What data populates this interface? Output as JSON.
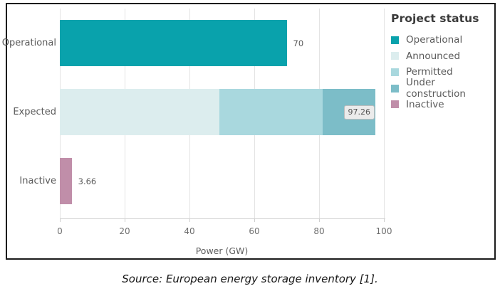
{
  "chart_data": {
    "type": "bar",
    "orientation": "horizontal",
    "stacked": true,
    "title": "",
    "xlabel": "Power (GW)",
    "ylabel": "",
    "xlim": [
      0,
      100
    ],
    "x_ticks": [
      0,
      20,
      40,
      60,
      80,
      100
    ],
    "grid": true,
    "categories": [
      "Operational",
      "Expected",
      "Inactive"
    ],
    "rows": [
      {
        "category": "Operational",
        "segments": [
          {
            "series": "Operational",
            "value": 70
          }
        ],
        "total": 70,
        "data_label": "70",
        "data_label_style": "plain"
      },
      {
        "category": "Expected",
        "segments": [
          {
            "series": "Announced",
            "value": 49.3
          },
          {
            "series": "Permitted",
            "value": 31.8
          },
          {
            "series": "Under construction",
            "value": 16.16
          }
        ],
        "total": 97.26,
        "data_label": "97.26",
        "data_label_style": "boxed"
      },
      {
        "category": "Inactive",
        "segments": [
          {
            "series": "Inactive",
            "value": 3.66
          }
        ],
        "total": 3.66,
        "data_label": "3.66",
        "data_label_style": "plain"
      }
    ],
    "series_colors": {
      "Operational": "#09a2ac",
      "Announced": "#dcedee",
      "Permitted": "#a9d8de",
      "Under construction": "#7cbdc8",
      "Inactive": "#c08ea9"
    },
    "legend": {
      "title": "Project status",
      "position": "right",
      "entries": [
        "Operational",
        "Announced",
        "Permitted",
        "Under construction",
        "Inactive"
      ]
    }
  },
  "caption": "Source: European energy storage inventory [1].",
  "colors": {
    "frame_border": "#1c1c1c",
    "gridline": "#e4e4e4",
    "axis_line": "#cfcfcf",
    "tick_label": "#6e6e6e",
    "category_label": "#5a5a5a",
    "legend_title": "#3a3a3a",
    "legend_label": "#5a5a5a",
    "data_label": "#5a5a5a",
    "label_box_bg": "#ebebeb",
    "label_box_border": "#bdbdbd",
    "background": "#ffffff"
  }
}
